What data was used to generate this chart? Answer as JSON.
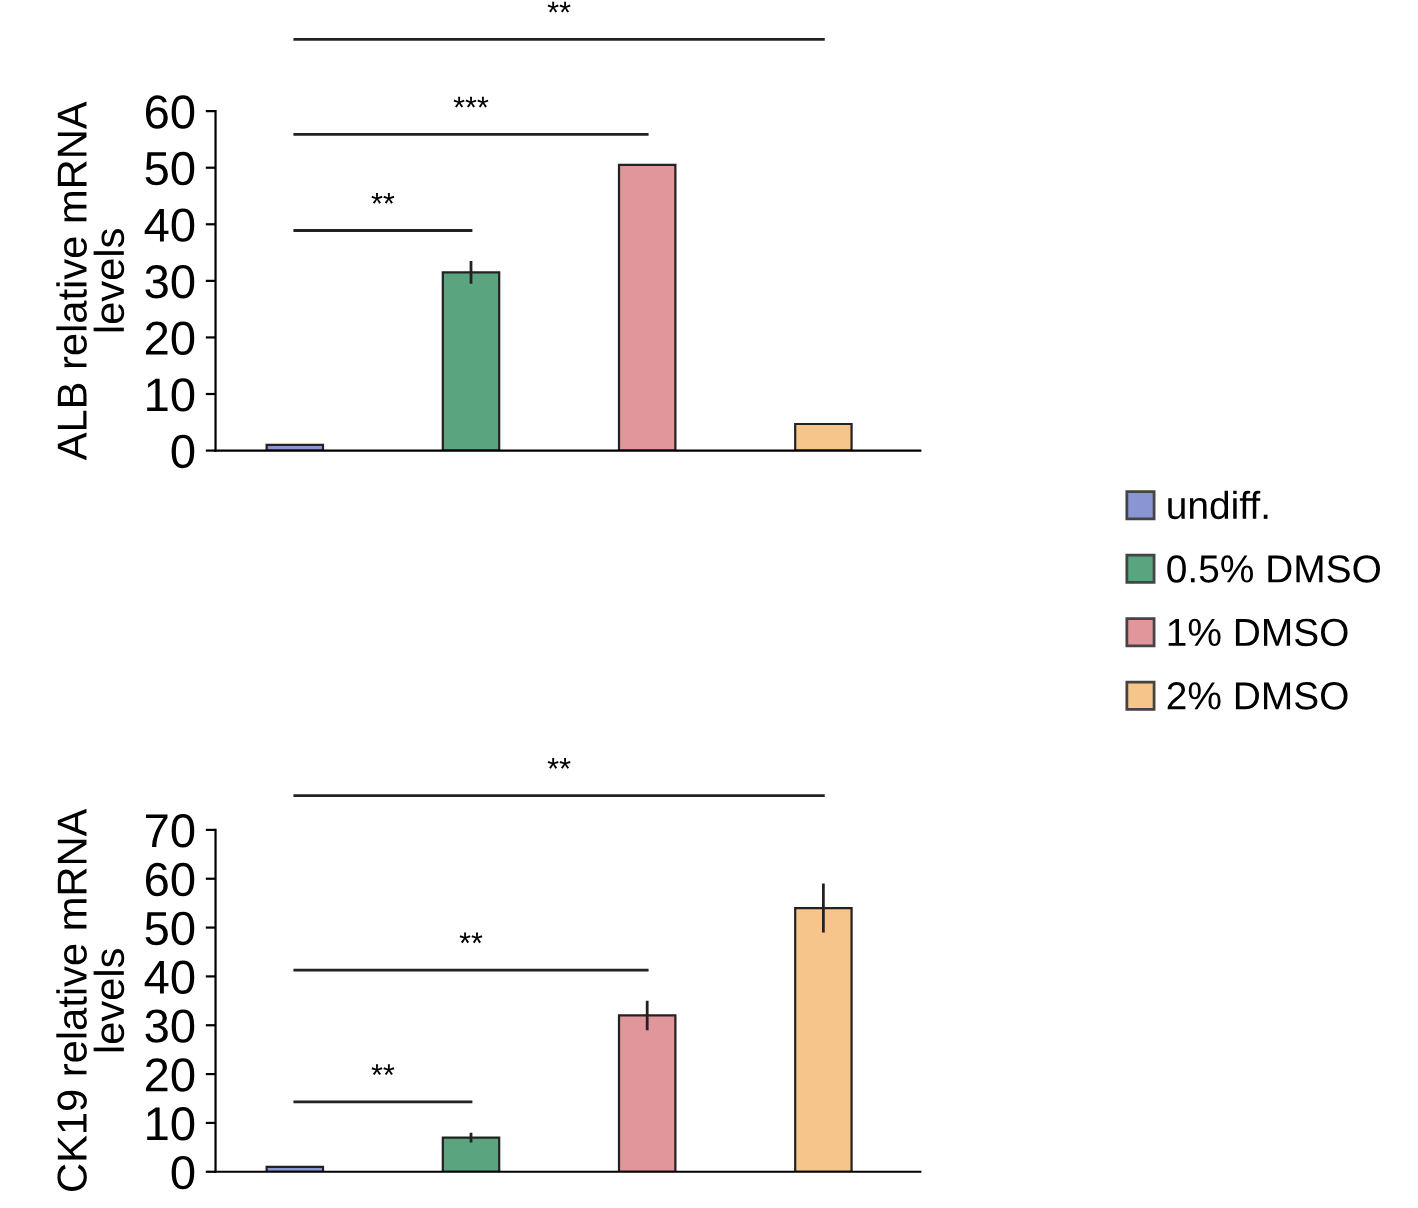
{
  "chart_data": [
    {
      "type": "bar",
      "ylabel": "ALB relative mRNA\nlevels",
      "categories": [
        null,
        null,
        null,
        null
      ],
      "stacked": true,
      "ylim": [
        0,
        60
      ],
      "yticks": [
        0,
        10,
        20,
        30,
        40,
        50,
        60
      ],
      "legend": "right",
      "grid": false,
      "series": [
        {
          "name": "undiff.",
          "color": "#8a96d4",
          "values": [
            1,
            null,
            null,
            null
          ]
        },
        {
          "name": "0.5% DMSO",
          "color": "#5aa57f",
          "values": [
            null,
            31.5,
            null,
            null
          ],
          "errors": [
            null,
            2,
            null,
            null
          ]
        },
        {
          "name": "1% DMSO",
          "color": "#e0969b",
          "values": [
            null,
            null,
            50.5,
            null
          ]
        },
        {
          "name": "2% DMSO",
          "color": "#f6c58c",
          "values": [
            null,
            null,
            null,
            4.7
          ]
        }
      ],
      "annotations": [
        "**",
        "***",
        "**"
      ]
    },
    {
      "type": "bar",
      "ylabel": "CK19 relative mRNA\nlevels",
      "categories": [
        null,
        null,
        null,
        null
      ],
      "stacked": true,
      "ylim": [
        0,
        70
      ],
      "yticks": [
        0,
        10,
        20,
        30,
        40,
        50,
        60,
        70
      ],
      "grid": false,
      "series": [
        {
          "color": "#8a96d4",
          "values": [
            1,
            null,
            null,
            null
          ]
        },
        {
          "color": "#5aa57f",
          "values": [
            null,
            7,
            null,
            null
          ],
          "errors": [
            null,
            1,
            null,
            null
          ]
        },
        {
          "color": "#e0969b",
          "values": [
            null,
            null,
            32,
            null
          ],
          "errors": [
            null,
            null,
            3,
            null
          ]
        },
        {
          "color": "#f6c58c",
          "values": [
            null,
            null,
            null,
            54
          ],
          "errors": [
            null,
            null,
            null,
            5
          ]
        }
      ],
      "annotations": [
        "**",
        "**",
        "**"
      ]
    }
  ]
}
